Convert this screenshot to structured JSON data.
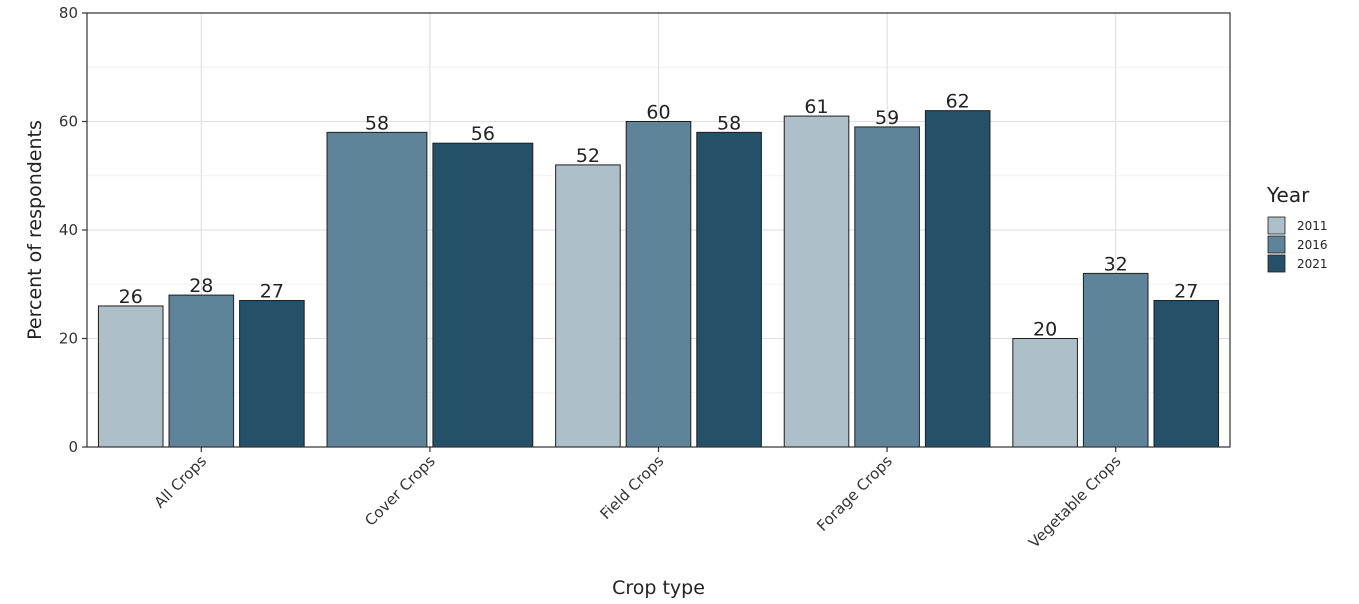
{
  "chart_data": {
    "type": "bar",
    "xlabel": "Crop type",
    "ylabel": "Percent of respondents",
    "ylim": [
      0,
      80
    ],
    "yticks": [
      0,
      20,
      40,
      60,
      80
    ],
    "grid": true,
    "legend": {
      "title": "Year",
      "position": "right"
    },
    "categories": [
      "All Crops",
      "Cover Crops",
      "Field Crops",
      "Forage Crops",
      "Vegetable Crops"
    ],
    "series": [
      {
        "name": "2011",
        "color": "#adbfc8",
        "values": [
          26,
          null,
          52,
          61,
          20
        ]
      },
      {
        "name": "2016",
        "color": "#5f8499",
        "values": [
          28,
          58,
          60,
          59,
          32
        ]
      },
      {
        "name": "2021",
        "color": "#245068",
        "values": [
          27,
          56,
          58,
          62,
          27
        ]
      }
    ]
  }
}
